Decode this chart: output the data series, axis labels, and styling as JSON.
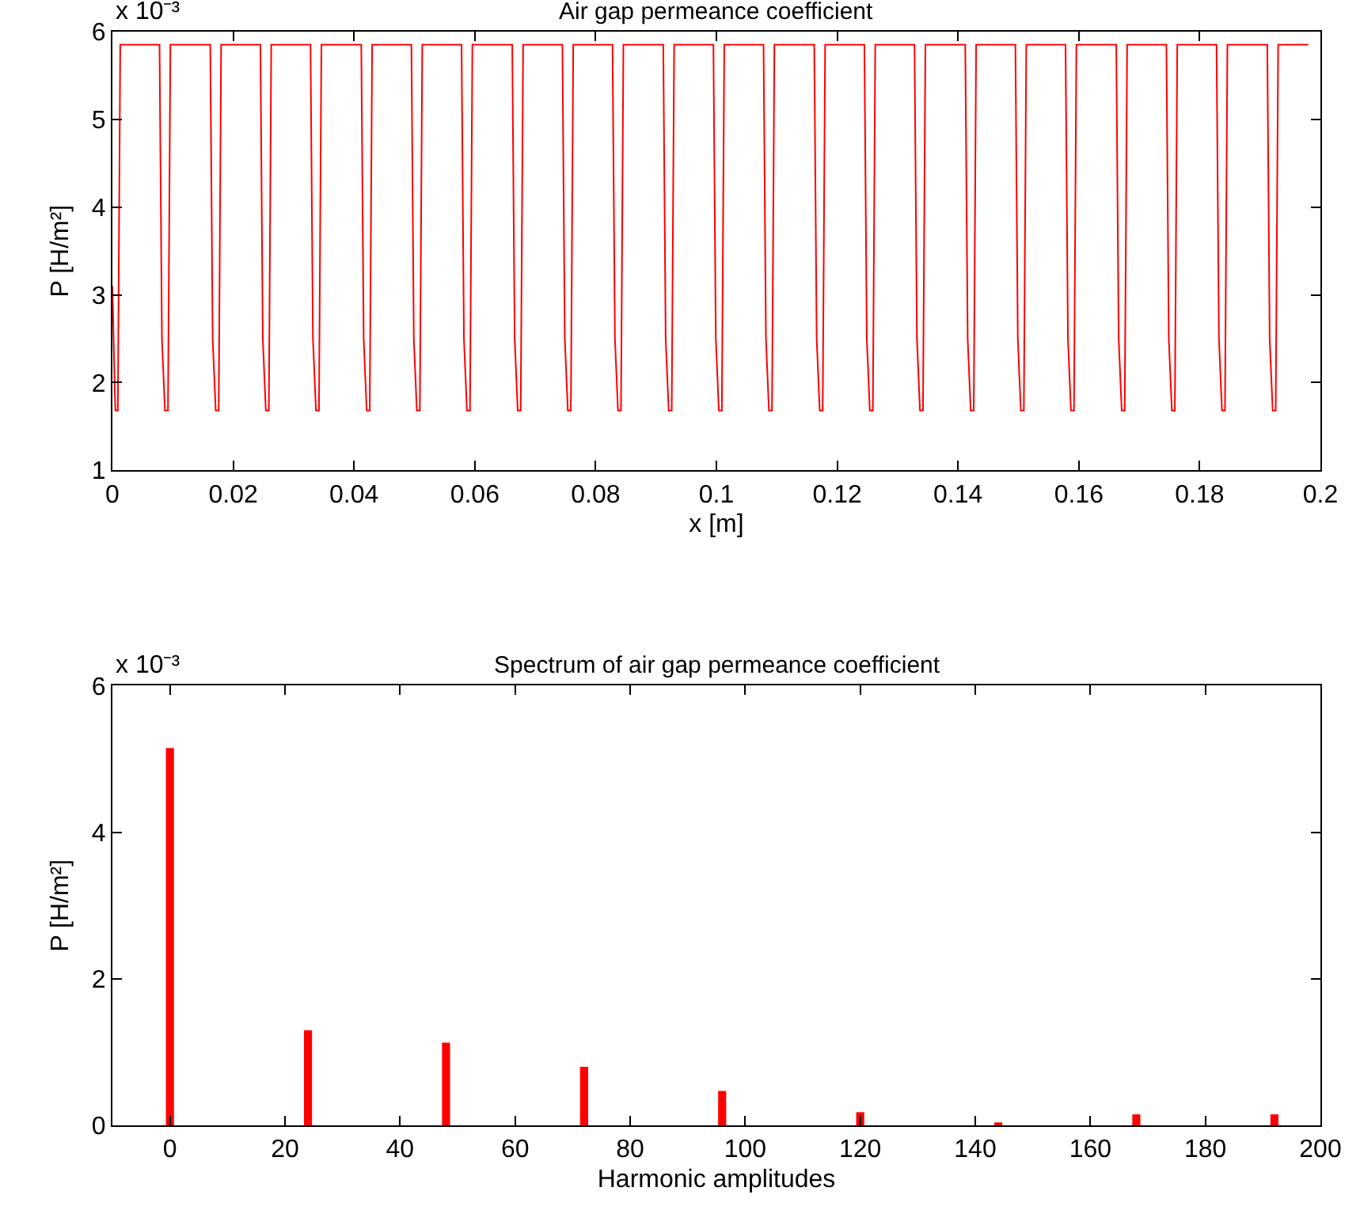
{
  "chart_data": [
    {
      "type": "line",
      "title": "Air gap permeance coefficient",
      "xlabel": "x [m]",
      "ylabel": "P [H/m²]",
      "annotations": [
        "x 10⁻³"
      ],
      "xlim": [
        0,
        0.2
      ],
      "xticks": [
        0,
        0.02,
        0.04,
        0.06,
        0.08,
        0.1,
        0.12,
        0.14,
        0.16,
        0.18,
        0.2
      ],
      "ylim": [
        1,
        6
      ],
      "yticks": [
        1,
        2,
        3,
        4,
        5,
        6
      ],
      "series": [
        {
          "color": "#ff0000",
          "x": [
            0,
            0.0004,
            0.0005,
            0.0009,
            0.0013,
            0.0078,
            0.0082,
            0.0087,
            0.0092,
            0.0096,
            0.0162,
            0.0166,
            0.0171,
            0.0176,
            0.018,
            0.0245,
            0.0249,
            0.0254,
            0.0259,
            0.0263,
            0.0328,
            0.0332,
            0.0337,
            0.0342,
            0.0346,
            0.0412,
            0.0416,
            0.0421,
            0.0426,
            0.043,
            0.0495,
            0.0499,
            0.0504,
            0.0509,
            0.0513,
            0.0578,
            0.0582,
            0.0587,
            0.0592,
            0.0596,
            0.0662,
            0.0666,
            0.0671,
            0.0676,
            0.068,
            0.0745,
            0.0749,
            0.0754,
            0.0759,
            0.0763,
            0.0828,
            0.0832,
            0.0837,
            0.0842,
            0.0846,
            0.0912,
            0.0916,
            0.0921,
            0.0926,
            0.093,
            0.0995,
            0.0999,
            0.1004,
            0.1009,
            0.1013,
            0.1078,
            0.1082,
            0.1087,
            0.1092,
            0.1096,
            0.1162,
            0.1166,
            0.1171,
            0.1176,
            0.118,
            0.1245,
            0.1249,
            0.1254,
            0.1259,
            0.1263,
            0.1328,
            0.1332,
            0.1337,
            0.1342,
            0.1346,
            0.1412,
            0.1416,
            0.1421,
            0.1426,
            0.143,
            0.1495,
            0.1499,
            0.1504,
            0.1509,
            0.1513,
            0.1578,
            0.1582,
            0.1587,
            0.1592,
            0.1596,
            0.1662,
            0.1666,
            0.1671,
            0.1676,
            0.168,
            0.1745,
            0.1749,
            0.1754,
            0.1759,
            0.1763,
            0.1828,
            0.1832,
            0.1837,
            0.1842,
            0.1846,
            0.1912,
            0.1916,
            0.1921,
            0.1926,
            0.193,
            0.198
          ],
          "values": [
            3.1,
            1.9,
            1.68,
            1.68,
            5.85,
            5.85,
            2.5,
            1.68,
            1.68,
            5.85,
            5.85,
            2.5,
            1.68,
            1.68,
            5.85,
            5.85,
            2.5,
            1.68,
            1.68,
            5.85,
            5.85,
            2.5,
            1.68,
            1.68,
            5.85,
            5.85,
            2.5,
            1.68,
            1.68,
            5.85,
            5.85,
            2.5,
            1.68,
            1.68,
            5.85,
            5.85,
            2.5,
            1.68,
            1.68,
            5.85,
            5.85,
            2.5,
            1.68,
            1.68,
            5.85,
            5.85,
            2.5,
            1.68,
            1.68,
            5.85,
            5.85,
            2.5,
            1.68,
            1.68,
            5.85,
            5.85,
            2.5,
            1.68,
            1.68,
            5.85,
            5.85,
            2.5,
            1.68,
            1.68,
            5.85,
            5.85,
            2.5,
            1.68,
            1.68,
            5.85,
            5.85,
            2.5,
            1.68,
            1.68,
            5.85,
            5.85,
            2.5,
            1.68,
            1.68,
            5.85,
            5.85,
            2.5,
            1.68,
            1.68,
            5.85,
            5.85,
            2.5,
            1.68,
            1.68,
            5.85,
            5.85,
            2.5,
            1.68,
            1.68,
            5.85,
            5.85,
            2.5,
            1.68,
            1.68,
            5.85,
            5.85,
            2.5,
            1.68,
            1.68,
            5.85,
            5.85,
            2.5,
            1.68,
            1.68,
            5.85,
            5.85,
            2.5,
            1.68,
            1.68,
            5.85,
            5.85,
            2.5,
            1.68,
            1.68,
            5.85,
            5.85
          ]
        }
      ]
    },
    {
      "type": "bar",
      "title": "Spectrum of air gap permeance coefficient",
      "xlabel": "Harmonic amplitudes",
      "ylabel": "P [H/m²]",
      "annotations": [
        "x 10⁻³"
      ],
      "xlim": [
        -10,
        200
      ],
      "xticks": [
        0,
        20,
        40,
        60,
        80,
        100,
        120,
        140,
        160,
        180,
        200
      ],
      "ylim": [
        0,
        6
      ],
      "yticks": [
        0,
        2,
        4,
        6
      ],
      "x": [
        0,
        24,
        48,
        72,
        96,
        120,
        144,
        168,
        192
      ],
      "series": [
        {
          "color": "#ff0000",
          "values": [
            5.15,
            1.3,
            1.13,
            0.8,
            0.47,
            0.18,
            0.04,
            0.15,
            0.15
          ]
        }
      ]
    }
  ]
}
